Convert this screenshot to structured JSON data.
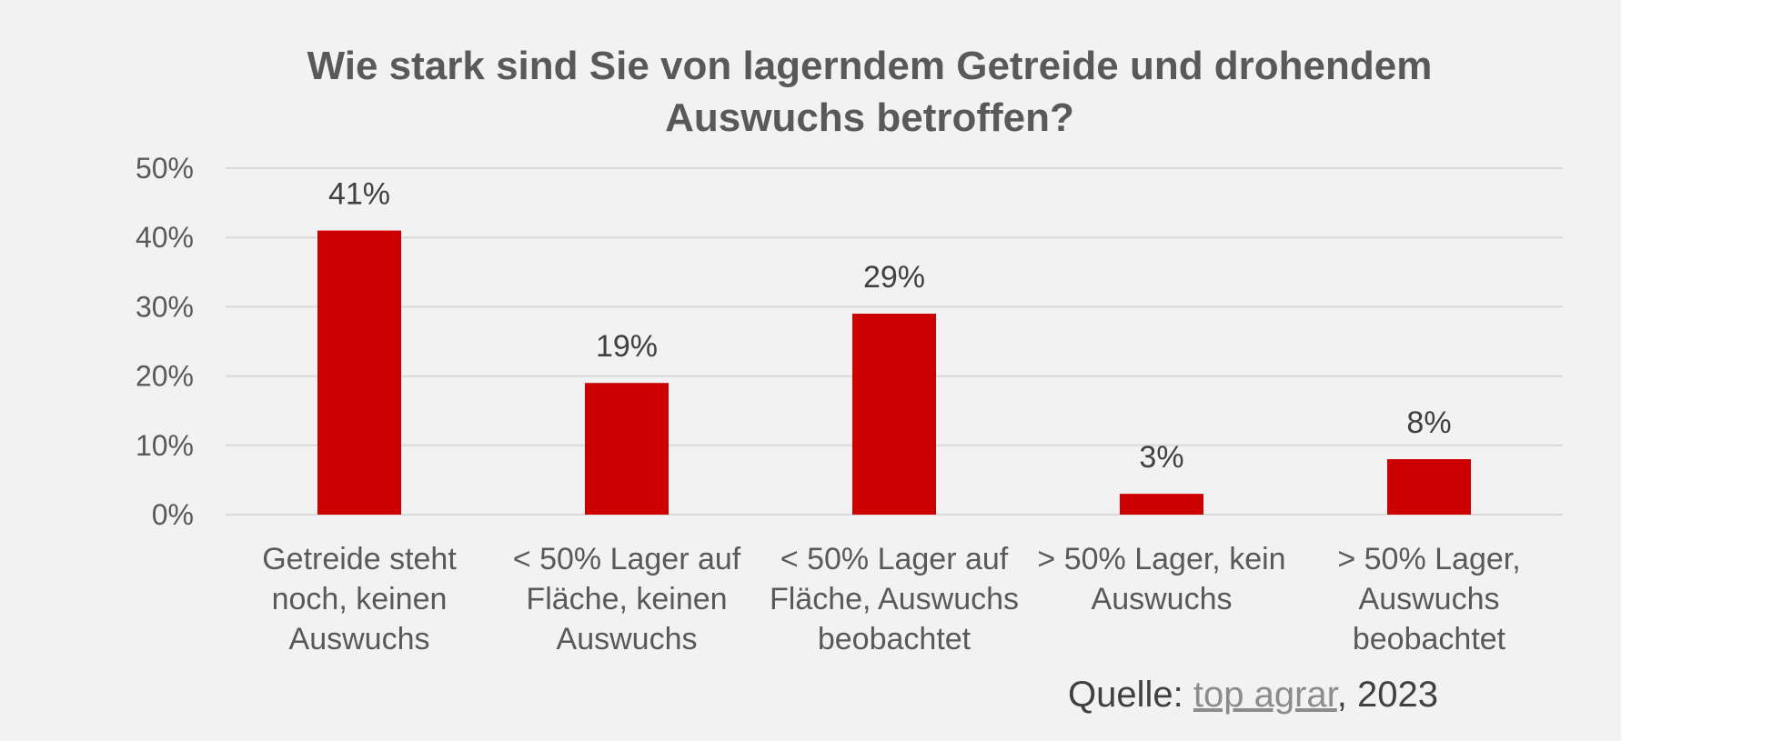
{
  "chart_data": {
    "type": "bar",
    "title": [
      "Wie stark sind Sie von lagerndem Getreide und drohendem",
      "Auswuchs betroffen?"
    ],
    "categories": [
      [
        "Getreide steht",
        "noch, keinen",
        "Auswuchs"
      ],
      [
        "< 50% Lager auf",
        "Fläche, keinen",
        "Auswuchs"
      ],
      [
        "< 50% Lager auf",
        "Fläche, Auswuchs",
        "beobachtet"
      ],
      [
        "> 50% Lager, kein",
        "Auswuchs"
      ],
      [
        "> 50% Lager,",
        "Auswuchs",
        "beobachtet"
      ]
    ],
    "values": [
      41,
      19,
      29,
      3,
      8
    ],
    "data_labels": [
      "41%",
      "19%",
      "29%",
      "3%",
      "8%"
    ],
    "ylim": [
      0,
      50
    ],
    "yticks": [
      0,
      10,
      20,
      30,
      40,
      50
    ],
    "ytick_labels": [
      "0%",
      "10%",
      "20%",
      "30%",
      "40%",
      "50%"
    ],
    "xlabel": "",
    "ylabel": "",
    "grid": true,
    "legend": "none",
    "bar_color": "#cc0000",
    "background_color": "#f2f2f2"
  },
  "source": {
    "prefix": "Quelle: ",
    "link_text": "top agrar",
    "suffix": ", 2023"
  }
}
